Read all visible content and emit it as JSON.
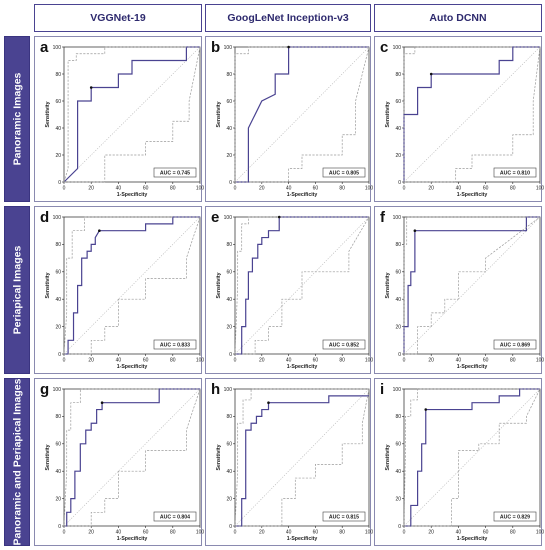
{
  "column_headers": [
    "VGGNet-19",
    "GoogLeNet Inception-v3",
    "Auto DCNN"
  ],
  "row_headers": [
    "Panoramic Images",
    "Periapical Images",
    "Panoramic and Periapical Images"
  ],
  "colors": {
    "roc_line": "#4a4391",
    "ci_line": "#9a9a9a",
    "frame": "#4a4391",
    "row_bg": "#4a4391"
  },
  "chart_data": [
    {
      "type": "line",
      "panel_label": "a",
      "xlabel": "1-Specificity",
      "ylabel": "Sensitivity",
      "xlim": [
        0,
        100
      ],
      "ylim": [
        0,
        100
      ],
      "x_ticks": [
        0,
        20,
        40,
        60,
        80,
        100
      ],
      "y_ticks": [
        0,
        20,
        40,
        60,
        80,
        100
      ],
      "annotation": "AUC = 0.745",
      "series": [
        {
          "role": "roc",
          "x": [
            0,
            10,
            10,
            20,
            20,
            40,
            40,
            50,
            50,
            90,
            90,
            100
          ],
          "y": [
            0,
            10,
            60,
            60,
            70,
            70,
            80,
            80,
            90,
            90,
            100,
            100
          ]
        },
        {
          "role": "ci_upper",
          "x": [
            0,
            3,
            3,
            9,
            9,
            30,
            30,
            100
          ],
          "y": [
            0,
            10,
            90,
            90,
            95,
            95,
            100,
            100
          ]
        },
        {
          "role": "ci_lower",
          "x": [
            0,
            30,
            30,
            60,
            60,
            80,
            80,
            92,
            92,
            100
          ],
          "y": [
            0,
            0,
            20,
            20,
            30,
            30,
            45,
            45,
            60,
            100
          ]
        }
      ],
      "highlight_point": {
        "x": 20,
        "y": 70
      }
    },
    {
      "type": "line",
      "panel_label": "b",
      "xlabel": "1-Specificity",
      "ylabel": "Sensitivity",
      "xlim": [
        0,
        100
      ],
      "ylim": [
        0,
        100
      ],
      "x_ticks": [
        0,
        20,
        40,
        60,
        80,
        100
      ],
      "y_ticks": [
        0,
        20,
        40,
        60,
        80,
        100
      ],
      "annotation": "AUC = 0.805",
      "series": [
        {
          "role": "roc",
          "x": [
            0,
            10,
            10,
            20,
            20,
            30,
            30,
            40,
            40,
            100
          ],
          "y": [
            0,
            0,
            40,
            60,
            60,
            65,
            80,
            80,
            100,
            100
          ]
        },
        {
          "role": "ci_upper",
          "x": [
            0,
            0,
            10,
            10,
            100
          ],
          "y": [
            0,
            95,
            95,
            100,
            100
          ]
        },
        {
          "role": "ci_lower",
          "x": [
            0,
            40,
            40,
            50,
            50,
            80,
            80,
            90,
            90,
            100
          ],
          "y": [
            0,
            0,
            10,
            10,
            20,
            20,
            35,
            35,
            60,
            100
          ]
        }
      ],
      "highlight_point": {
        "x": 40,
        "y": 100
      }
    },
    {
      "type": "line",
      "panel_label": "c",
      "xlabel": "1-Specificity",
      "ylabel": "Sensitivity",
      "xlim": [
        0,
        100
      ],
      "ylim": [
        0,
        100
      ],
      "x_ticks": [
        0,
        20,
        40,
        60,
        80,
        100
      ],
      "y_ticks": [
        0,
        20,
        40,
        60,
        80,
        100
      ],
      "annotation": "AUC = 0.810",
      "series": [
        {
          "role": "roc",
          "x": [
            0,
            0,
            10,
            10,
            20,
            20,
            70,
            70,
            80,
            80,
            100
          ],
          "y": [
            0,
            50,
            50,
            70,
            70,
            80,
            80,
            90,
            90,
            100,
            100
          ]
        },
        {
          "role": "ci_upper",
          "x": [
            0,
            0,
            8,
            8,
            100
          ],
          "y": [
            0,
            95,
            95,
            100,
            100
          ]
        },
        {
          "role": "ci_lower",
          "x": [
            0,
            38,
            38,
            50,
            50,
            80,
            80,
            95,
            95,
            100
          ],
          "y": [
            0,
            0,
            10,
            10,
            20,
            20,
            35,
            35,
            60,
            100
          ]
        }
      ],
      "highlight_point": {
        "x": 20,
        "y": 80
      }
    },
    {
      "type": "line",
      "panel_label": "d",
      "xlabel": "1-Specificity",
      "ylabel": "Sensitivity",
      "xlim": [
        0,
        100
      ],
      "ylim": [
        0,
        100
      ],
      "x_ticks": [
        0,
        20,
        40,
        60,
        80,
        100
      ],
      "y_ticks": [
        0,
        20,
        40,
        60,
        80,
        100
      ],
      "annotation": "AUC = 0.833",
      "series": [
        {
          "role": "roc",
          "x": [
            0,
            3,
            3,
            7,
            7,
            10,
            10,
            13,
            13,
            17,
            17,
            20,
            20,
            23,
            23,
            26,
            60,
            60,
            80,
            80,
            100
          ],
          "y": [
            0,
            0,
            10,
            10,
            30,
            30,
            50,
            50,
            70,
            70,
            75,
            75,
            80,
            80,
            85,
            90,
            90,
            95,
            95,
            100,
            100
          ]
        },
        {
          "role": "ci_upper",
          "x": [
            0,
            2,
            2,
            6,
            6,
            15,
            15,
            100
          ],
          "y": [
            0,
            30,
            70,
            70,
            90,
            90,
            100,
            100
          ]
        },
        {
          "role": "ci_lower",
          "x": [
            0,
            20,
            20,
            30,
            30,
            40,
            40,
            60,
            60,
            90,
            90,
            100
          ],
          "y": [
            0,
            0,
            10,
            10,
            20,
            20,
            40,
            40,
            55,
            55,
            70,
            100
          ]
        }
      ],
      "highlight_point": {
        "x": 26,
        "y": 90
      }
    },
    {
      "type": "line",
      "panel_label": "e",
      "xlabel": "1-Specificity",
      "ylabel": "Sensitivity",
      "xlim": [
        0,
        100
      ],
      "ylim": [
        0,
        100
      ],
      "x_ticks": [
        0,
        20,
        40,
        60,
        80,
        100
      ],
      "y_ticks": [
        0,
        20,
        40,
        60,
        80,
        100
      ],
      "annotation": "AUC = 0.852",
      "series": [
        {
          "role": "roc",
          "x": [
            0,
            5,
            5,
            8,
            8,
            10,
            10,
            13,
            13,
            17,
            17,
            20,
            20,
            25,
            25,
            33,
            33,
            100
          ],
          "y": [
            0,
            0,
            20,
            20,
            40,
            40,
            60,
            60,
            70,
            70,
            80,
            80,
            85,
            85,
            90,
            90,
            100,
            100
          ]
        },
        {
          "role": "ci_upper",
          "x": [
            0,
            2,
            2,
            5,
            5,
            10,
            10,
            100
          ],
          "y": [
            0,
            50,
            75,
            75,
            95,
            95,
            100,
            100
          ]
        },
        {
          "role": "ci_lower",
          "x": [
            0,
            15,
            15,
            25,
            25,
            35,
            35,
            50,
            50,
            85,
            85,
            100
          ],
          "y": [
            0,
            0,
            10,
            10,
            20,
            20,
            40,
            40,
            60,
            60,
            75,
            100
          ]
        }
      ],
      "highlight_point": {
        "x": 33,
        "y": 100
      }
    },
    {
      "type": "line",
      "panel_label": "f",
      "xlabel": "1-Specificity",
      "ylabel": "Sensitivity",
      "xlim": [
        0,
        100
      ],
      "ylim": [
        0,
        100
      ],
      "x_ticks": [
        0,
        20,
        40,
        60,
        80,
        100
      ],
      "y_ticks": [
        0,
        20,
        40,
        60,
        80,
        100
      ],
      "annotation": "AUC = 0.869",
      "series": [
        {
          "role": "roc",
          "x": [
            0,
            0,
            3,
            3,
            5,
            5,
            8,
            8,
            90,
            90,
            100
          ],
          "y": [
            0,
            20,
            20,
            50,
            50,
            60,
            60,
            90,
            90,
            100,
            100
          ]
        },
        {
          "role": "ci_upper",
          "x": [
            0,
            0,
            2,
            2,
            100
          ],
          "y": [
            0,
            80,
            80,
            100,
            100
          ]
        },
        {
          "role": "ci_lower",
          "x": [
            0,
            10,
            10,
            20,
            20,
            30,
            30,
            40,
            40,
            60,
            60,
            100
          ],
          "y": [
            0,
            0,
            20,
            20,
            30,
            30,
            40,
            40,
            60,
            60,
            70,
            100
          ]
        }
      ],
      "highlight_point": {
        "x": 8,
        "y": 90
      }
    },
    {
      "type": "line",
      "panel_label": "g",
      "xlabel": "1-Specificity",
      "ylabel": "Sensitivity",
      "xlim": [
        0,
        100
      ],
      "ylim": [
        0,
        100
      ],
      "x_ticks": [
        0,
        20,
        40,
        60,
        80,
        100
      ],
      "y_ticks": [
        0,
        20,
        40,
        60,
        80,
        100
      ],
      "annotation": "AUC = 0.804",
      "series": [
        {
          "role": "roc",
          "x": [
            0,
            2,
            2,
            5,
            5,
            8,
            8,
            12,
            12,
            16,
            16,
            20,
            20,
            24,
            24,
            28,
            28,
            70,
            70,
            100
          ],
          "y": [
            0,
            0,
            10,
            10,
            20,
            20,
            40,
            40,
            60,
            60,
            70,
            70,
            75,
            75,
            85,
            85,
            90,
            90,
            100,
            100
          ]
        },
        {
          "role": "ci_upper",
          "x": [
            0,
            2,
            2,
            5,
            5,
            12,
            12,
            100
          ],
          "y": [
            0,
            40,
            70,
            70,
            90,
            90,
            100,
            100
          ]
        },
        {
          "role": "ci_lower",
          "x": [
            0,
            20,
            20,
            30,
            30,
            40,
            40,
            60,
            60,
            90,
            90,
            100
          ],
          "y": [
            0,
            0,
            10,
            10,
            20,
            20,
            40,
            40,
            55,
            55,
            70,
            100
          ]
        }
      ],
      "highlight_point": {
        "x": 28,
        "y": 90
      }
    },
    {
      "type": "line",
      "panel_label": "h",
      "xlabel": "1-Specificity",
      "ylabel": "Sensitivity",
      "xlim": [
        0,
        100
      ],
      "ylim": [
        0,
        100
      ],
      "x_ticks": [
        0,
        20,
        40,
        60,
        80,
        100
      ],
      "y_ticks": [
        0,
        20,
        40,
        60,
        80,
        100
      ],
      "annotation": "AUC = 0.815",
      "series": [
        {
          "role": "roc",
          "x": [
            0,
            5,
            5,
            8,
            8,
            12,
            12,
            16,
            16,
            20,
            20,
            25,
            25,
            70,
            70,
            100
          ],
          "y": [
            0,
            0,
            20,
            20,
            70,
            70,
            75,
            75,
            80,
            80,
            85,
            85,
            90,
            90,
            95,
            95
          ]
        },
        {
          "role": "ci_upper",
          "x": [
            0,
            2,
            2,
            6,
            6,
            12,
            12,
            100
          ],
          "y": [
            0,
            40,
            75,
            75,
            92,
            92,
            100,
            100
          ]
        },
        {
          "role": "ci_lower",
          "x": [
            0,
            35,
            35,
            45,
            45,
            60,
            60,
            80,
            80,
            95,
            95,
            100
          ],
          "y": [
            0,
            0,
            20,
            20,
            35,
            35,
            45,
            45,
            60,
            60,
            75,
            100
          ]
        }
      ],
      "highlight_point": {
        "x": 25,
        "y": 90
      }
    },
    {
      "type": "line",
      "panel_label": "i",
      "xlabel": "1-Specificity",
      "ylabel": "Sensitivity",
      "xlim": [
        0,
        100
      ],
      "ylim": [
        0,
        100
      ],
      "x_ticks": [
        0,
        20,
        40,
        60,
        80,
        100
      ],
      "y_ticks": [
        0,
        20,
        40,
        60,
        80,
        100
      ],
      "annotation": "AUC = 0.829",
      "series": [
        {
          "role": "roc",
          "x": [
            0,
            5,
            5,
            10,
            10,
            13,
            13,
            16,
            16,
            50,
            50,
            70,
            70,
            85,
            85,
            100
          ],
          "y": [
            0,
            0,
            15,
            15,
            40,
            40,
            60,
            60,
            85,
            85,
            90,
            90,
            95,
            95,
            100,
            100
          ]
        },
        {
          "role": "ci_upper",
          "x": [
            0,
            1,
            1,
            5,
            5,
            10,
            10,
            100
          ],
          "y": [
            0,
            50,
            80,
            80,
            92,
            92,
            100,
            100
          ]
        },
        {
          "role": "ci_lower",
          "x": [
            0,
            35,
            35,
            40,
            40,
            55,
            55,
            70,
            70,
            90,
            90,
            100
          ],
          "y": [
            0,
            0,
            20,
            20,
            55,
            55,
            60,
            60,
            75,
            75,
            80,
            100
          ]
        }
      ],
      "highlight_point": {
        "x": 16,
        "y": 85
      }
    }
  ]
}
